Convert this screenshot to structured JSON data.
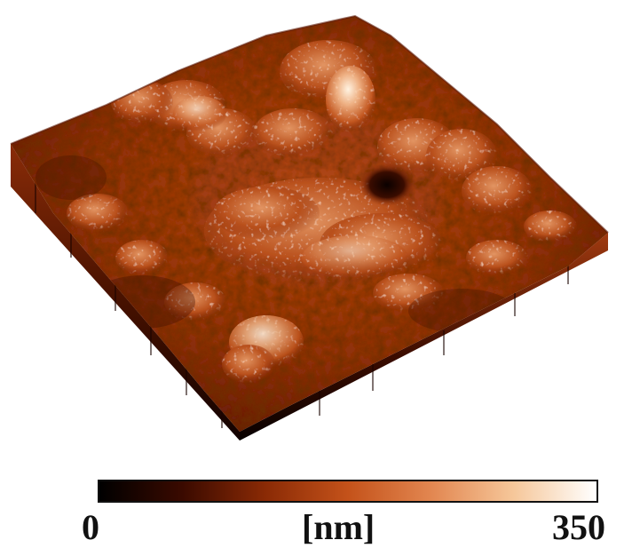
{
  "colorbar": {
    "min_label": "0",
    "unit_label": "[nm]",
    "max_label": "350",
    "colors": [
      "#000000",
      "#3a0a00",
      "#8a2a05",
      "#c4521a",
      "#e28650",
      "#f6c79a",
      "#ffffff"
    ]
  },
  "surface": {
    "palette": {
      "dark": "#2a0600",
      "base": "#9a3510",
      "mid": "#c45a25",
      "light": "#eaa070",
      "highlight": "#fbe6cf"
    }
  }
}
